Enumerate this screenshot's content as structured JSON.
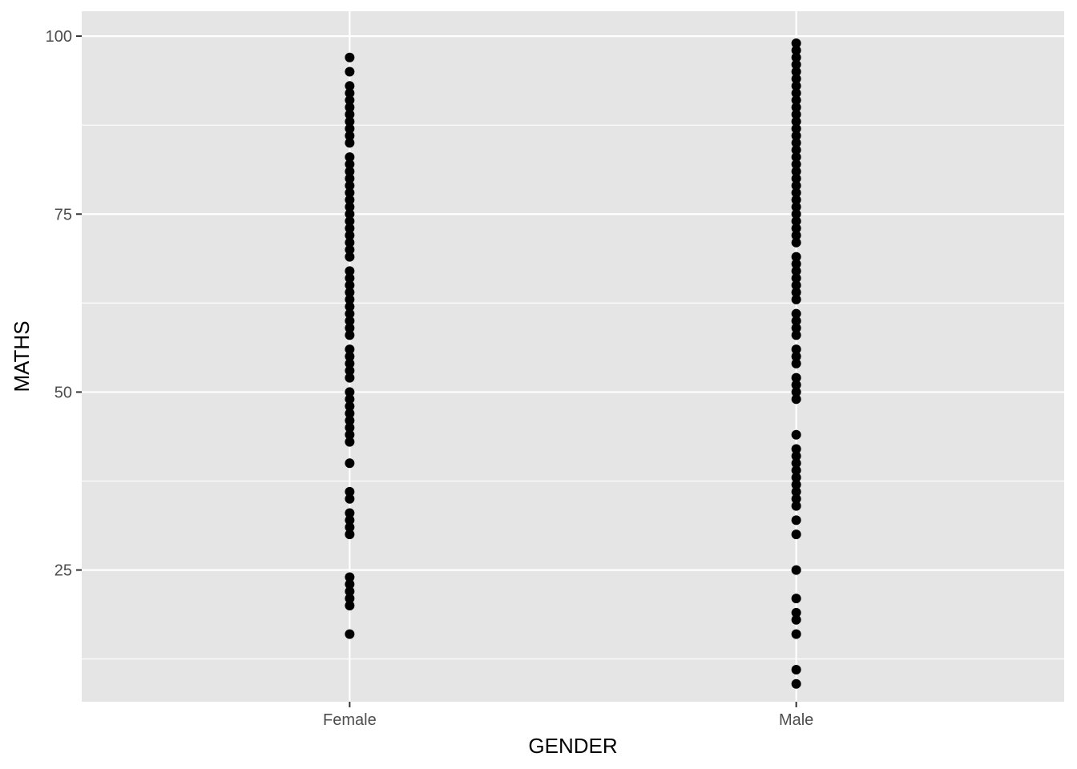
{
  "chart_data": {
    "type": "scatter",
    "xlabel": "GENDER",
    "ylabel": "MATHS",
    "categories": [
      "Female",
      "Male"
    ],
    "ylim": [
      6.5,
      103.5
    ],
    "yticks": [
      25,
      50,
      75,
      100
    ],
    "yticks_minor": [
      12.5,
      37.5,
      62.5,
      87.5
    ],
    "grid": true,
    "legend": "none",
    "colors": {
      "panel": "#e5e5e5",
      "grid": "#ffffff",
      "point": "#000000",
      "tick": "#333333"
    },
    "points": [
      {
        "category": "Female",
        "values": [
          97,
          95,
          93,
          92,
          91,
          90,
          89,
          88,
          87,
          86,
          85,
          83,
          82,
          81,
          80,
          79,
          78,
          77,
          76,
          75,
          74,
          73,
          72,
          71,
          70,
          69,
          67,
          66,
          65,
          64,
          63,
          62,
          61,
          60,
          59,
          58,
          56,
          55,
          54,
          53,
          52,
          50,
          49,
          48,
          47,
          46,
          45,
          44,
          43,
          40,
          36,
          35,
          33,
          32,
          31,
          30,
          24,
          23,
          22,
          21,
          20,
          16
        ]
      },
      {
        "category": "Male",
        "values": [
          99,
          98,
          97,
          96,
          95,
          94,
          93,
          92,
          91,
          90,
          89,
          88,
          87,
          86,
          85,
          84,
          83,
          82,
          81,
          80,
          79,
          78,
          77,
          76,
          75,
          74,
          73,
          72,
          71,
          69,
          68,
          67,
          66,
          65,
          64,
          63,
          61,
          60,
          59,
          58,
          56,
          55,
          54,
          52,
          51,
          50,
          49,
          44,
          42,
          41,
          40,
          39,
          38,
          37,
          36,
          35,
          34,
          32,
          30,
          25,
          21,
          19,
          18,
          16,
          11,
          9
        ]
      }
    ]
  }
}
